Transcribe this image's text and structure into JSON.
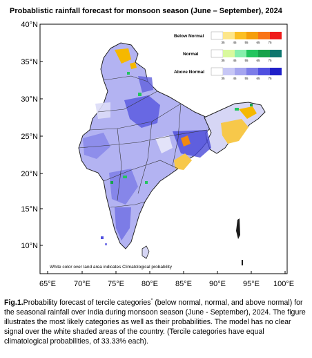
{
  "title": "Probablistic rainfall forecast for monsoon season (June – September), 2024",
  "map": {
    "lat_labels": [
      "40°N",
      "35°N",
      "30°N",
      "25°N",
      "20°N",
      "15°N",
      "10°N"
    ],
    "lon_labels": [
      "65°E",
      "70°E",
      "75°E",
      "80°E",
      "85°E",
      "90°E",
      "95°E",
      "100°E"
    ],
    "footnote": "White color over land area indicates Climatological probability",
    "legend": {
      "levels": [
        "35",
        "45",
        "55",
        "65",
        "75"
      ],
      "rows": [
        {
          "label": "Below Normal",
          "colors": [
            "#ffffff",
            "#fde68a",
            "#fbbf24",
            "#f59e0b",
            "#f97316",
            "#ef1b1b"
          ]
        },
        {
          "label": "Normal",
          "colors": [
            "#ffffff",
            "#d9f99d",
            "#86efac",
            "#22c55e",
            "#16a34a",
            "#0f766e"
          ]
        },
        {
          "label": "Above Normal",
          "colors": [
            "#ffffff",
            "#c7c7f5",
            "#a5a5ef",
            "#7c7ce8",
            "#4f4fe0",
            "#1f1fc8"
          ]
        }
      ]
    }
  },
  "caption": {
    "prefix": "Fig.1.",
    "part1": "Probability forecast of tercile categories",
    "sup": "*",
    "part2": " (below normal, normal, and above normal) for the seasonal rainfall over India during monsoon season (June - September), 2024.  The figure illustrates the most likely categories as well as their probabilities.  The model has no clear signal over the white shaded areas of the country. (Tercile categories have equal climatological probabilities, of 33.33% each)."
  }
}
